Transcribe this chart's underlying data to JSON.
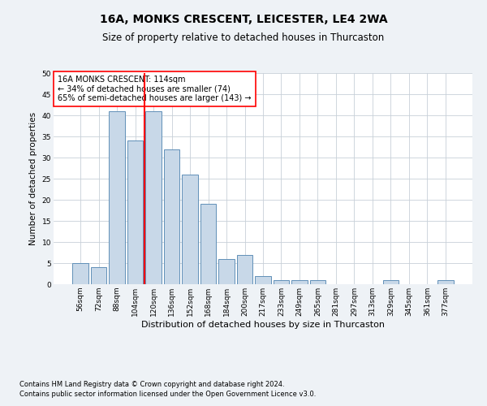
{
  "title1": "16A, MONKS CRESCENT, LEICESTER, LE4 2WA",
  "title2": "Size of property relative to detached houses in Thurcaston",
  "xlabel": "Distribution of detached houses by size in Thurcaston",
  "ylabel": "Number of detached properties",
  "categories": [
    "56sqm",
    "72sqm",
    "88sqm",
    "104sqm",
    "120sqm",
    "136sqm",
    "152sqm",
    "168sqm",
    "184sqm",
    "200sqm",
    "217sqm",
    "233sqm",
    "249sqm",
    "265sqm",
    "281sqm",
    "297sqm",
    "313sqm",
    "329sqm",
    "345sqm",
    "361sqm",
    "377sqm"
  ],
  "values": [
    5,
    4,
    41,
    34,
    41,
    32,
    26,
    19,
    6,
    7,
    2,
    1,
    1,
    1,
    0,
    0,
    0,
    1,
    0,
    0,
    1
  ],
  "bar_color": "#c8d8e8",
  "bar_edge_color": "#6090b8",
  "vline_x": 4.0,
  "vline_color": "red",
  "ylim": [
    0,
    50
  ],
  "yticks": [
    0,
    5,
    10,
    15,
    20,
    25,
    30,
    35,
    40,
    45,
    50
  ],
  "annotation_box_text": "16A MONKS CRESCENT: 114sqm\n← 34% of detached houses are smaller (74)\n65% of semi-detached houses are larger (143) →",
  "footer1": "Contains HM Land Registry data © Crown copyright and database right 2024.",
  "footer2": "Contains public sector information licensed under the Open Government Licence v3.0.",
  "bg_color": "#eef2f6",
  "plot_bg_color": "#ffffff",
  "grid_color": "#c8d0d8",
  "title1_fontsize": 10,
  "title2_fontsize": 8.5,
  "xlabel_fontsize": 8,
  "ylabel_fontsize": 7.5,
  "tick_fontsize": 6.5,
  "ann_fontsize": 7,
  "footer_fontsize": 6
}
